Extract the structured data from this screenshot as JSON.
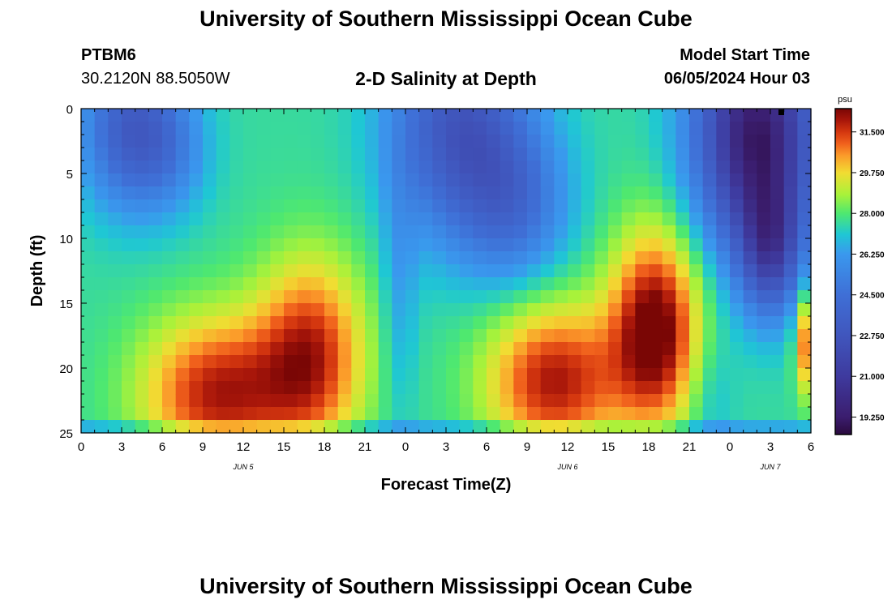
{
  "header": {
    "title": "University of Southern Mississippi Ocean Cube",
    "station": "PTBM6",
    "coords": "30.2120N  88.5050W",
    "subtitle": "2-D Salinity at Depth",
    "model_start_label": "Model Start Time",
    "model_start_value": "06/05/2024 Hour 03"
  },
  "footer": {
    "title": "University of Southern Mississippi Ocean Cube"
  },
  "chart_data": {
    "type": "heatmap",
    "title": "2-D Salinity at Depth",
    "xlabel": "Forecast Time(Z)",
    "ylabel": "Depth (ft)",
    "x_ticks": [
      "0",
      "3",
      "6",
      "9",
      "12",
      "15",
      "18",
      "21",
      "0",
      "3",
      "6",
      "9",
      "12",
      "15",
      "18",
      "21",
      "0",
      "3",
      "6"
    ],
    "x_range_hours": [
      0,
      54
    ],
    "date_labels": [
      {
        "text": "JUN 5",
        "hour": 12
      },
      {
        "text": "JUN 6",
        "hour": 36
      },
      {
        "text": "JUN 7",
        "hour": 51
      }
    ],
    "y_ticks": [
      "0",
      "5",
      "10",
      "15",
      "20",
      "25"
    ],
    "y_range_ft": [
      0,
      25
    ],
    "colorbar": {
      "unit": "psu",
      "labels": [
        "31.500",
        "29.750",
        "28.000",
        "26.250",
        "24.500",
        "22.750",
        "21.000",
        "19.250"
      ],
      "range": [
        18.5,
        32.5
      ],
      "stops": [
        {
          "v": 18.5,
          "c": "#2a0a3e"
        },
        {
          "v": 19.25,
          "c": "#3b1d6e"
        },
        {
          "v": 21.0,
          "c": "#3e3a9e"
        },
        {
          "v": 22.75,
          "c": "#4056bd"
        },
        {
          "v": 24.5,
          "c": "#3f6fd6"
        },
        {
          "v": 26.25,
          "c": "#3a98ee"
        },
        {
          "v": 27.1,
          "c": "#1fc7d4"
        },
        {
          "v": 28.0,
          "c": "#4ee870"
        },
        {
          "v": 28.8,
          "c": "#a8f23a"
        },
        {
          "v": 29.75,
          "c": "#f2dc32"
        },
        {
          "v": 30.5,
          "c": "#fb9a2a"
        },
        {
          "v": 31.0,
          "c": "#f0601c"
        },
        {
          "v": 31.5,
          "c": "#d4370f"
        },
        {
          "v": 32.0,
          "c": "#a8160a"
        },
        {
          "v": 32.5,
          "c": "#7a0605"
        }
      ]
    },
    "grid_dims": {
      "hours": 54,
      "depth_levels": 25
    },
    "salinity_psu": {
      "background": 27.6,
      "surface_fresh_events": [
        {
          "hour": 3.5,
          "depth_ft": 1.5,
          "peak": -4.0
        },
        {
          "hour": 6.5,
          "depth_ft": 3.0,
          "peak": -1.8
        },
        {
          "hour": 28,
          "depth_ft": 1.5,
          "peak": -4.8
        },
        {
          "hour": 32,
          "depth_ft": 7.5,
          "peak": -2.8
        },
        {
          "hour": 50,
          "depth_ft": 2.0,
          "peak": -8.5
        },
        {
          "hour": 51,
          "depth_ft": 11,
          "peak": -4.5
        }
      ],
      "deep_salty_events": [
        {
          "hour": 10,
          "depth_ft": 22,
          "peak": 4.3
        },
        {
          "hour": 17,
          "depth_ft": 19,
          "peak": 4.1
        },
        {
          "hour": 35,
          "depth_ft": 21,
          "peak": 4.4
        },
        {
          "hour": 42.5,
          "depth_ft": 17,
          "peak": 5.3
        },
        {
          "hour": 53.6,
          "depth_ft": 18,
          "peak": 3.4
        }
      ]
    }
  }
}
